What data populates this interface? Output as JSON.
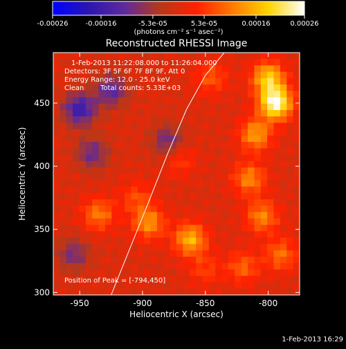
{
  "colorbar": {
    "ticks": [
      "-0.00026",
      "-0.00016",
      "-5.3e-05",
      "5.3e-05",
      "0.00016",
      "0.00026"
    ],
    "tick_values": [
      -0.00026,
      -0.00016,
      -5.3e-05,
      5.3e-05,
      0.00016,
      0.00026
    ],
    "range": [
      -0.00026,
      0.00026
    ],
    "unit_label": "(photons cm⁻² s⁻¹ asec⁻²)"
  },
  "title": "Reconstructed RHESSI Image",
  "annotations": {
    "time_range": "1-Feb-2013 11:22:08.000 to 11:26:04.000",
    "detectors": "Detectors: 3F 5F 6F 7F 8F 9F, Att 0",
    "energy": "Energy Range: 12.0 - 25.0 keV",
    "method": "Clean",
    "counts": "Total counts: 5.33E+03",
    "peak": "Position of Peak = [-794,450]"
  },
  "footer": {
    "timestamp": "1-Feb-2013 16:29"
  },
  "chart_data": {
    "type": "heatmap",
    "title": "Reconstructed RHESSI Image",
    "xlabel": "Heliocentric X (arcsec)",
    "ylabel": "Heliocentric Y (arcsec)",
    "xlim": [
      -971,
      -775
    ],
    "ylim": [
      298,
      490
    ],
    "xticks": [
      -950,
      -900,
      -850,
      -800
    ],
    "yticks": [
      300,
      350,
      400,
      450
    ],
    "xtick_labels": [
      "-950",
      "-900",
      "-850",
      "-800"
    ],
    "ytick_labels": [
      "300",
      "350",
      "400",
      "450"
    ],
    "colormap": [
      "#0000ff",
      "#2a16b0",
      "#5e2a9c",
      "#b83818",
      "#ff2000",
      "#ff7a00",
      "#ffd400",
      "#ffffff"
    ],
    "grid": false,
    "peak": {
      "x": -794,
      "y": 450
    },
    "limb_curve": {
      "x": [
        -925,
        -910,
        -895,
        -880,
        -865,
        -850,
        -835
      ],
      "y": [
        298,
        335,
        372,
        410,
        445,
        472,
        490
      ]
    },
    "sources": [
      {
        "x": -794,
        "y": 450,
        "value": 0.00026
      },
      {
        "x": -800,
        "y": 470,
        "value": 0.00018
      },
      {
        "x": -810,
        "y": 425,
        "value": 0.00014
      },
      {
        "x": -815,
        "y": 390,
        "value": 0.00012
      },
      {
        "x": -805,
        "y": 360,
        "value": 0.00012
      },
      {
        "x": -790,
        "y": 330,
        "value": 0.0001
      },
      {
        "x": -820,
        "y": 320,
        "value": 9e-05
      },
      {
        "x": -862,
        "y": 342,
        "value": 0.00016
      },
      {
        "x": -895,
        "y": 355,
        "value": 0.00013
      },
      {
        "x": -905,
        "y": 375,
        "value": 7e-05
      },
      {
        "x": -935,
        "y": 362,
        "value": 0.00011
      },
      {
        "x": -870,
        "y": 405,
        "value": 6e-05
      },
      {
        "x": -845,
        "y": 470,
        "value": 8e-05
      },
      {
        "x": -850,
        "y": 318,
        "value": 6e-05
      },
      {
        "x": -950,
        "y": 445,
        "value": -0.00016
      },
      {
        "x": -925,
        "y": 460,
        "value": -0.00012
      },
      {
        "x": -940,
        "y": 410,
        "value": -0.0001
      },
      {
        "x": -955,
        "y": 330,
        "value": -9e-05
      },
      {
        "x": -880,
        "y": 420,
        "value": -0.0001
      }
    ]
  }
}
